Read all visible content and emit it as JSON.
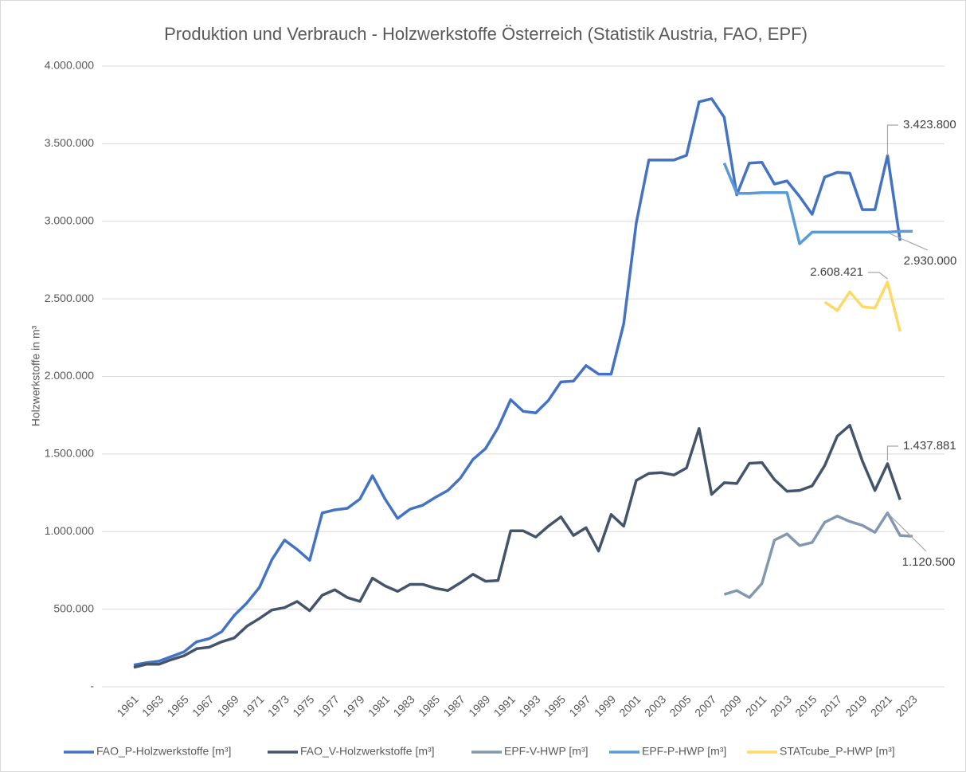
{
  "chart_data": {
    "type": "line",
    "title": "Produktion und Verbrauch - Holzwerkstoffe Österreich (Statistik Austria, FAO, EPF)",
    "y_label": "Holzwerkstoffe in m³",
    "categories": [
      "1961",
      null,
      "1963",
      null,
      "1965",
      null,
      "1967",
      null,
      "1969",
      null,
      "1971",
      null,
      "1973",
      null,
      "1975",
      null,
      "1977",
      null,
      "1979",
      null,
      "1981",
      null,
      "1983",
      null,
      "1985",
      null,
      "1987",
      null,
      "1989",
      null,
      "1991",
      null,
      "1993",
      null,
      "1995",
      null,
      "1997",
      null,
      "1999",
      null,
      "2001",
      null,
      "2003",
      null,
      "2005",
      null,
      "2007",
      null,
      "2009",
      null,
      "2011",
      null,
      "2013",
      null,
      "2015",
      null,
      "2017",
      null,
      "2019",
      null,
      "2021",
      null,
      "2023"
    ],
    "ylim": [
      0,
      4000000
    ],
    "yticks": [
      {
        "value": 0,
        "label": "-"
      },
      {
        "value": 500000,
        "label": "500.000"
      },
      {
        "value": 1000000,
        "label": "1.000.000"
      },
      {
        "value": 1500000,
        "label": "1.500.000"
      },
      {
        "value": 2000000,
        "label": "2.000.000"
      },
      {
        "value": 2500000,
        "label": "2.500.000"
      },
      {
        "value": 3000000,
        "label": "3.000.000"
      },
      {
        "value": 3500000,
        "label": "3.500.000"
      },
      {
        "value": 4000000,
        "label": "4.000.000"
      }
    ],
    "grid": true,
    "legend": "bottom",
    "series": [
      {
        "name": "FAO_P-Holzwerkstoffe [m³]",
        "color": "#4472c4",
        "values": [
          140000,
          155000,
          165000,
          195000,
          225000,
          290000,
          310000,
          355000,
          460000,
          540000,
          640000,
          820000,
          945000,
          885000,
          815000,
          1120000,
          1140000,
          1150000,
          1210000,
          1360000,
          1210000,
          1085000,
          1145000,
          1170000,
          1220000,
          1265000,
          1345000,
          1465000,
          1535000,
          1670000,
          1850000,
          1775000,
          1765000,
          1845000,
          1965000,
          1970000,
          2070000,
          2015000,
          2015000,
          2340000,
          2990000,
          3395000,
          3395000,
          3395000,
          3425000,
          3770000,
          3790000,
          3670000,
          3170000,
          3375000,
          3380000,
          3240000,
          3260000,
          3160000,
          3045000,
          3285000,
          3315000,
          3310000,
          3075000,
          3075000,
          3423800,
          2875000,
          null
        ],
        "value_labels": [
          null,
          null,
          null,
          null,
          null,
          null,
          null,
          null,
          null,
          null,
          null,
          null,
          null,
          null,
          null,
          null,
          null,
          null,
          null,
          null,
          null,
          null,
          null,
          null,
          null,
          null,
          null,
          null,
          null,
          null,
          null,
          null,
          null,
          null,
          null,
          null,
          null,
          null,
          null,
          null,
          null,
          null,
          null,
          null,
          null,
          null,
          null,
          null,
          null,
          null,
          null,
          null,
          null,
          null,
          null,
          null,
          null,
          null,
          null,
          null,
          "3.423.800",
          null,
          null
        ]
      },
      {
        "name": "FAO_V-Holzwerkstoffe [m³]",
        "color": "#44546a",
        "values": [
          125000,
          145000,
          145000,
          175000,
          200000,
          245000,
          255000,
          290000,
          315000,
          390000,
          440000,
          495000,
          510000,
          550000,
          490000,
          590000,
          625000,
          575000,
          550000,
          700000,
          650000,
          615000,
          660000,
          660000,
          635000,
          620000,
          670000,
          725000,
          680000,
          685000,
          1005000,
          1005000,
          965000,
          1035000,
          1095000,
          975000,
          1025000,
          875000,
          1110000,
          1035000,
          1330000,
          1375000,
          1380000,
          1365000,
          1410000,
          1665000,
          1240000,
          1315000,
          1310000,
          1440000,
          1445000,
          1335000,
          1260000,
          1265000,
          1295000,
          1425000,
          1615000,
          1685000,
          1455000,
          1265000,
          1437881,
          1205000,
          null
        ],
        "value_labels": [
          null,
          null,
          null,
          null,
          null,
          null,
          null,
          null,
          null,
          null,
          null,
          null,
          null,
          null,
          null,
          null,
          null,
          null,
          null,
          null,
          null,
          null,
          null,
          null,
          null,
          null,
          null,
          null,
          null,
          null,
          null,
          null,
          null,
          null,
          null,
          null,
          null,
          null,
          null,
          null,
          null,
          null,
          null,
          null,
          null,
          null,
          null,
          null,
          null,
          null,
          null,
          null,
          null,
          null,
          null,
          null,
          null,
          null,
          null,
          null,
          "1.437.881",
          null,
          null
        ]
      },
      {
        "name": "EPF-V-HWP [m³]",
        "color": "#8497b0",
        "values": [
          null,
          null,
          null,
          null,
          null,
          null,
          null,
          null,
          null,
          null,
          null,
          null,
          null,
          null,
          null,
          null,
          null,
          null,
          null,
          null,
          null,
          null,
          null,
          null,
          null,
          null,
          null,
          null,
          null,
          null,
          null,
          null,
          null,
          null,
          null,
          null,
          null,
          null,
          null,
          null,
          null,
          null,
          null,
          null,
          null,
          null,
          null,
          595000,
          620000,
          575000,
          665000,
          945000,
          985000,
          910000,
          930000,
          1060000,
          1100000,
          1065000,
          1040000,
          995000,
          1120500,
          975000,
          970000
        ],
        "value_labels": [
          null,
          null,
          null,
          null,
          null,
          null,
          null,
          null,
          null,
          null,
          null,
          null,
          null,
          null,
          null,
          null,
          null,
          null,
          null,
          null,
          null,
          null,
          null,
          null,
          null,
          null,
          null,
          null,
          null,
          null,
          null,
          null,
          null,
          null,
          null,
          null,
          null,
          null,
          null,
          null,
          null,
          null,
          null,
          null,
          null,
          null,
          null,
          null,
          null,
          null,
          null,
          null,
          null,
          null,
          null,
          null,
          null,
          null,
          null,
          null,
          "1.120.500",
          null,
          null
        ]
      },
      {
        "name": "EPF-P-HWP [m³]",
        "color": "#5b9bd5",
        "values": [
          null,
          null,
          null,
          null,
          null,
          null,
          null,
          null,
          null,
          null,
          null,
          null,
          null,
          null,
          null,
          null,
          null,
          null,
          null,
          null,
          null,
          null,
          null,
          null,
          null,
          null,
          null,
          null,
          null,
          null,
          null,
          null,
          null,
          null,
          null,
          null,
          null,
          null,
          null,
          null,
          null,
          null,
          null,
          null,
          null,
          null,
          null,
          3375000,
          3180000,
          3180000,
          3185000,
          3185000,
          3185000,
          2855000,
          2930000,
          2930000,
          2930000,
          2930000,
          2930000,
          2930000,
          2930000,
          2935000,
          2935000
        ],
        "value_labels": [
          null,
          null,
          null,
          null,
          null,
          null,
          null,
          null,
          null,
          null,
          null,
          null,
          null,
          null,
          null,
          null,
          null,
          null,
          null,
          null,
          null,
          null,
          null,
          null,
          null,
          null,
          null,
          null,
          null,
          null,
          null,
          null,
          null,
          null,
          null,
          null,
          null,
          null,
          null,
          null,
          null,
          null,
          null,
          null,
          null,
          null,
          null,
          null,
          null,
          null,
          null,
          null,
          null,
          null,
          null,
          null,
          null,
          null,
          null,
          null,
          "2.930.000",
          null,
          null
        ]
      },
      {
        "name": "STATcube_P-HWP [m³]",
        "color": "#ffd966",
        "values": [
          null,
          null,
          null,
          null,
          null,
          null,
          null,
          null,
          null,
          null,
          null,
          null,
          null,
          null,
          null,
          null,
          null,
          null,
          null,
          null,
          null,
          null,
          null,
          null,
          null,
          null,
          null,
          null,
          null,
          null,
          null,
          null,
          null,
          null,
          null,
          null,
          null,
          null,
          null,
          null,
          null,
          null,
          null,
          null,
          null,
          null,
          null,
          null,
          null,
          null,
          null,
          null,
          null,
          null,
          null,
          2480000,
          2425000,
          2545000,
          2450000,
          2440000,
          2608421,
          2290000,
          null
        ],
        "value_labels": [
          null,
          null,
          null,
          null,
          null,
          null,
          null,
          null,
          null,
          null,
          null,
          null,
          null,
          null,
          null,
          null,
          null,
          null,
          null,
          null,
          null,
          null,
          null,
          null,
          null,
          null,
          null,
          null,
          null,
          null,
          null,
          null,
          null,
          null,
          null,
          null,
          null,
          null,
          null,
          null,
          null,
          null,
          null,
          null,
          null,
          null,
          null,
          null,
          null,
          null,
          null,
          null,
          null,
          null,
          null,
          null,
          null,
          null,
          null,
          null,
          "2.608.421",
          null,
          null
        ]
      }
    ]
  }
}
